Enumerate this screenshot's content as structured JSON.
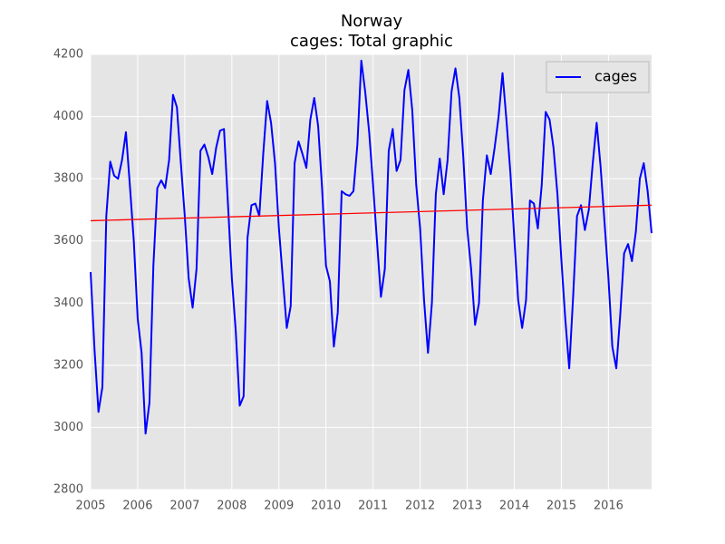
{
  "chart_data": {
    "type": "line",
    "title": "Norway",
    "subtitle": "cages: Total graphic",
    "x": [
      2005,
      2005.083,
      2005.167,
      2005.25,
      2005.333,
      2005.417,
      2005.5,
      2005.583,
      2005.667,
      2005.75,
      2005.833,
      2005.917,
      2006,
      2006.083,
      2006.167,
      2006.25,
      2006.333,
      2006.417,
      2006.5,
      2006.583,
      2006.667,
      2006.75,
      2006.833,
      2006.917,
      2007,
      2007.083,
      2007.167,
      2007.25,
      2007.333,
      2007.417,
      2007.5,
      2007.583,
      2007.667,
      2007.75,
      2007.833,
      2007.917,
      2008,
      2008.083,
      2008.167,
      2008.25,
      2008.333,
      2008.417,
      2008.5,
      2008.583,
      2008.667,
      2008.75,
      2008.833,
      2008.917,
      2009,
      2009.083,
      2009.167,
      2009.25,
      2009.333,
      2009.417,
      2009.5,
      2009.583,
      2009.667,
      2009.75,
      2009.833,
      2009.917,
      2010,
      2010.083,
      2010.167,
      2010.25,
      2010.333,
      2010.417,
      2010.5,
      2010.583,
      2010.667,
      2010.75,
      2010.833,
      2010.917,
      2011,
      2011.083,
      2011.167,
      2011.25,
      2011.333,
      2011.417,
      2011.5,
      2011.583,
      2011.667,
      2011.75,
      2011.833,
      2011.917,
      2012,
      2012.083,
      2012.167,
      2012.25,
      2012.333,
      2012.417,
      2012.5,
      2012.583,
      2012.667,
      2012.75,
      2012.833,
      2012.917,
      2013,
      2013.083,
      2013.167,
      2013.25,
      2013.333,
      2013.417,
      2013.5,
      2013.583,
      2013.667,
      2013.75,
      2013.833,
      2013.917,
      2014,
      2014.083,
      2014.167,
      2014.25,
      2014.333,
      2014.417,
      2014.5,
      2014.583,
      2014.667,
      2014.75,
      2014.833,
      2014.917,
      2015,
      2015.083,
      2015.167,
      2015.25,
      2015.333,
      2015.417,
      2015.5,
      2015.583,
      2015.667,
      2015.75,
      2015.833,
      2015.917,
      2016,
      2016.083,
      2016.167,
      2016.25,
      2016.333,
      2016.417,
      2016.5,
      2016.583,
      2016.667,
      2016.75,
      2016.833,
      2016.917
    ],
    "series": [
      {
        "name": "cages",
        "color": "#0000ff",
        "values": [
          3500,
          3250,
          3050,
          3130,
          3680,
          3855,
          3810,
          3800,
          3860,
          3950,
          3780,
          3600,
          3350,
          3240,
          2980,
          3080,
          3520,
          3770,
          3795,
          3770,
          3860,
          4070,
          4030,
          3850,
          3680,
          3480,
          3385,
          3510,
          3890,
          3910,
          3870,
          3815,
          3900,
          3955,
          3960,
          3720,
          3480,
          3310,
          3070,
          3100,
          3610,
          3715,
          3720,
          3680,
          3880,
          4050,
          3980,
          3850,
          3640,
          3480,
          3320,
          3390,
          3850,
          3920,
          3880,
          3835,
          3990,
          4060,
          3970,
          3770,
          3520,
          3470,
          3260,
          3370,
          3760,
          3750,
          3745,
          3760,
          3910,
          4180,
          4080,
          3950,
          3780,
          3600,
          3420,
          3510,
          3890,
          3960,
          3825,
          3860,
          4085,
          4150,
          4020,
          3780,
          3640,
          3410,
          3240,
          3400,
          3750,
          3865,
          3750,
          3860,
          4080,
          4155,
          4060,
          3870,
          3640,
          3510,
          3330,
          3400,
          3730,
          3875,
          3815,
          3900,
          4000,
          4140,
          3990,
          3820,
          3610,
          3410,
          3320,
          3410,
          3730,
          3720,
          3640,
          3780,
          4015,
          3990,
          3900,
          3750,
          3540,
          3350,
          3190,
          3420,
          3680,
          3715,
          3635,
          3700,
          3850,
          3980,
          3840,
          3660,
          3480,
          3260,
          3190,
          3360,
          3560,
          3590,
          3535,
          3630,
          3800,
          3850,
          3760,
          3625
        ]
      }
    ],
    "trend_line": {
      "color": "#ff0000",
      "x": [
        2005,
        2016.917
      ],
      "values": [
        3665,
        3715
      ]
    },
    "xlim": [
      2005,
      2016.917
    ],
    "xticks": [
      2005,
      2006,
      2007,
      2008,
      2009,
      2010,
      2011,
      2012,
      2013,
      2014,
      2015,
      2016
    ],
    "ylim": [
      2800,
      4200
    ],
    "yticks": [
      2800,
      3000,
      3200,
      3400,
      3600,
      3800,
      4000,
      4200
    ],
    "grid": true,
    "legend": "upper right"
  }
}
